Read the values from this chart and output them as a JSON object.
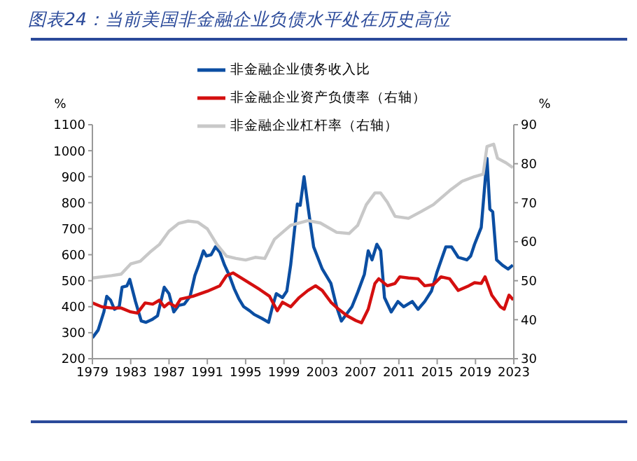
{
  "chart_data": {
    "type": "line",
    "title": "图表24：当前美国非金融企业负债水平处在历史高位",
    "ylabel": "%",
    "y2label": "%",
    "legend": "top",
    "grid": false,
    "marker": "none",
    "line_style": "solid",
    "xlim": [
      1979,
      2023
    ],
    "xticks": [
      1979,
      1983,
      1987,
      1991,
      1995,
      1999,
      2003,
      2007,
      2011,
      2015,
      2019,
      2023
    ],
    "ylim": [
      200,
      1100
    ],
    "yticks": [
      200,
      300,
      400,
      500,
      600,
      700,
      800,
      900,
      1000,
      1100
    ],
    "y2lim": [
      30,
      90
    ],
    "y2ticks": [
      30,
      40,
      50,
      60,
      70,
      80,
      90
    ],
    "series": [
      {
        "name": "非金融企业债务收入比",
        "color": "#0b4ea2",
        "x": [
          1979.0,
          1979.6,
          1980.2,
          1980.5,
          1980.9,
          1981.3,
          1981.8,
          1982.1,
          1982.6,
          1982.9,
          1983.5,
          1984.1,
          1984.6,
          1985.2,
          1985.8,
          1986.5,
          1987.0,
          1987.5,
          1988.0,
          1988.6,
          1989.2,
          1989.7,
          1990.1,
          1990.6,
          1990.9,
          1991.4,
          1991.85,
          1992.3,
          1992.8,
          1993.3,
          1993.8,
          1994.3,
          1994.8,
          1995.4,
          1995.9,
          1996.7,
          1997.4,
          1997.8,
          1998.2,
          1998.85,
          1999.3,
          1999.7,
          2000.4,
          2000.7,
          2001.1,
          2001.55,
          2002.1,
          2003.0,
          2003.9,
          2004.5,
          2005.0,
          2005.4,
          2006.1,
          2006.7,
          2007.4,
          2007.8,
          2008.2,
          2008.7,
          2009.1,
          2009.5,
          2010.2,
          2010.9,
          2011.5,
          2012.4,
          2013.0,
          2013.7,
          2014.4,
          2015.0,
          2015.9,
          2016.5,
          2017.2,
          2018.1,
          2018.5,
          2018.9,
          2019.6,
          2020.2,
          2020.5,
          2020.8,
          2021.2,
          2021.8,
          2022.4,
          2022.9
        ],
        "values": [
          280,
          310,
          380,
          440,
          425,
          390,
          400,
          475,
          480,
          505,
          420,
          345,
          340,
          350,
          365,
          475,
          450,
          380,
          405,
          410,
          440,
          520,
          560,
          615,
          595,
          600,
          630,
          610,
          560,
          520,
          470,
          430,
          400,
          385,
          370,
          355,
          340,
          400,
          450,
          435,
          460,
          560,
          795,
          790,
          900,
          775,
          630,
          545,
          490,
          400,
          345,
          365,
          400,
          455,
          525,
          615,
          580,
          640,
          615,
          435,
          380,
          420,
          400,
          420,
          390,
          420,
          460,
          535,
          630,
          630,
          590,
          580,
          595,
          640,
          705,
          970,
          775,
          765,
          580,
          560,
          545,
          560
        ]
      },
      {
        "name": "非金融企业资产负债率（右轴）",
        "color": "#d40f0f",
        "axis": "y2",
        "x": [
          1979.0,
          1980.0,
          1981.0,
          1982.0,
          1983.0,
          1983.7,
          1984.5,
          1985.3,
          1986.0,
          1986.5,
          1987.0,
          1987.7,
          1988.2,
          1989.5,
          1991.0,
          1992.3,
          1993.0,
          1993.7,
          1995.0,
          1996.5,
          1997.5,
          1998.3,
          1998.85,
          1999.7,
          2000.6,
          2001.5,
          2002.3,
          2003.0,
          2003.9,
          2004.7,
          2005.6,
          2006.5,
          2007.1,
          2007.8,
          2008.5,
          2008.9,
          2009.8,
          2010.6,
          2011.1,
          2012.0,
          2013.0,
          2013.7,
          2014.6,
          2015.4,
          2016.3,
          2017.2,
          2018.3,
          2018.9,
          2019.6,
          2020.0,
          2020.7,
          2021.6,
          2022.0,
          2022.5,
          2022.95
        ],
        "values": [
          44.3,
          43.3,
          43,
          43,
          42,
          41.7,
          44.3,
          44,
          45,
          43.3,
          44.3,
          43.3,
          45.3,
          46,
          47.3,
          48.7,
          51.3,
          52,
          50,
          47.7,
          46,
          42.3,
          44.5,
          43.3,
          45.7,
          47.5,
          48.7,
          47.5,
          44.5,
          42.7,
          41,
          39.8,
          39.2,
          42.7,
          49.3,
          50.5,
          48.7,
          49.3,
          51,
          50.7,
          50.5,
          48.7,
          49,
          51,
          50.5,
          47.5,
          48.7,
          49.5,
          49.3,
          51,
          46.3,
          43.3,
          42.7,
          46.3,
          45.1
        ]
      },
      {
        "name": "非金融企业杠杆率（右轴）",
        "color": "#c8c8c8",
        "axis": "y2",
        "x": [
          1979.0,
          1981.0,
          1982.0,
          1983.0,
          1984.0,
          1985.0,
          1986.0,
          1987.0,
          1988.0,
          1989.0,
          1990.0,
          1991.0,
          1992.0,
          1993.0,
          1994.0,
          1995.0,
          1996.0,
          1997.0,
          1998.0,
          1999.7,
          2001.5,
          2002.8,
          2004.5,
          2005.8,
          2006.7,
          2007.6,
          2008.5,
          2009.1,
          2009.8,
          2010.6,
          2012.0,
          2013.3,
          2014.6,
          2016.3,
          2017.6,
          2018.9,
          2019.8,
          2020.2,
          2020.9,
          2021.3,
          2022.2,
          2022.9
        ],
        "values": [
          50.7,
          51.3,
          51.7,
          54.3,
          55,
          57.3,
          59.3,
          62.7,
          64.7,
          65.3,
          65,
          63.3,
          59.3,
          56.3,
          55.7,
          55.3,
          56,
          55.7,
          60.6,
          64.2,
          65.4,
          64.8,
          62.4,
          62.1,
          64.2,
          69.5,
          72.5,
          72.5,
          70.1,
          66.5,
          66,
          67.7,
          69.5,
          73.1,
          75.5,
          76.7,
          77.3,
          84.4,
          85,
          81.4,
          80.2,
          79
        ]
      }
    ]
  }
}
